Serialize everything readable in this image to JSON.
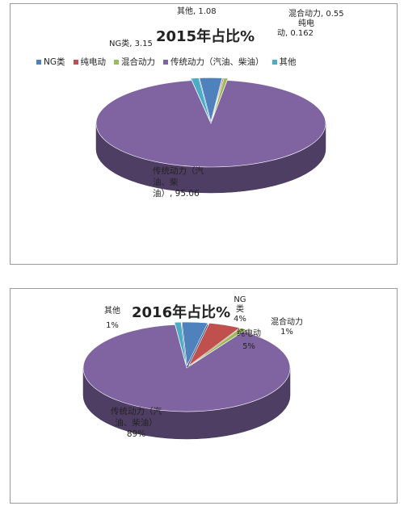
{
  "chart_data": [
    {
      "type": "pie",
      "title": "2015年占比%",
      "slices": [
        {
          "name": "NG类",
          "value": 3.15,
          "label": "NG类, 3.15",
          "color": "#4f81bd"
        },
        {
          "name": "纯电动",
          "value": 0.162,
          "label_lines": [
            "纯电",
            "动, 0.162"
          ],
          "color": "#c0504d"
        },
        {
          "name": "混合动力",
          "value": 0.55,
          "label": "混合动力, 0.55",
          "color": "#9bbb59"
        },
        {
          "name": "传统动力（汽油、柴油）",
          "value": 95.06,
          "label_lines": [
            "传统动力（汽",
            "油、柴",
            "油）, 95.06"
          ],
          "color": "#8064a2"
        },
        {
          "name": "其他",
          "value": 1.08,
          "label": "其他, 1.08",
          "color": "#4bacc6"
        }
      ],
      "legend": {
        "position": "top",
        "entries": [
          "NG类",
          "纯电动",
          "混合动力",
          "传统动力（汽油、柴油）",
          "其他"
        ]
      }
    },
    {
      "type": "pie",
      "title": "2016年占比%",
      "slices": [
        {
          "name": "NG类",
          "value": 4,
          "label_lines": [
            "NG",
            "类",
            "4%"
          ],
          "color": "#4f81bd"
        },
        {
          "name": "纯电动",
          "value": 5,
          "label_lines": [
            "纯电动",
            "5%"
          ],
          "color": "#c0504d"
        },
        {
          "name": "混合动力",
          "value": 1,
          "label_lines": [
            "混合动力",
            "1%"
          ],
          "color": "#9bbb59"
        },
        {
          "name": "传统动力（汽油、柴油）",
          "value": 89,
          "label_lines": [
            "传统动力（汽",
            "油、柴油）",
            "89%"
          ],
          "color": "#8064a2"
        },
        {
          "name": "其他",
          "value": 1,
          "label_lines": [
            "其他",
            "1%"
          ],
          "color": "#4bacc6"
        }
      ]
    }
  ]
}
